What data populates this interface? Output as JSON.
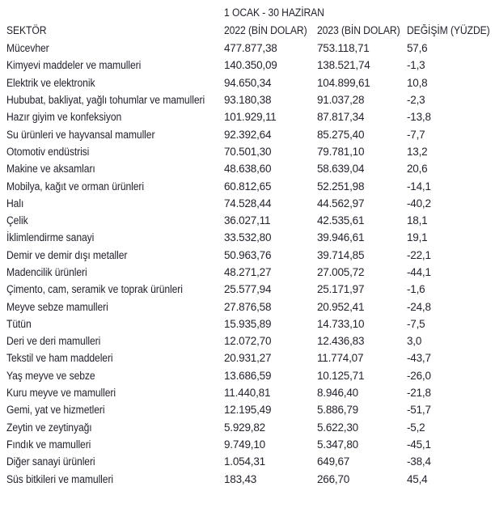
{
  "colors": {
    "background": "#ffffff",
    "text": "#23232e"
  },
  "chart_data": {
    "type": "table",
    "title": "1 OCAK - 30 HAZİRAN",
    "columns": [
      "SEKTÖR",
      "2022 (BİN DOLAR)",
      "2023 (BİN DOLAR)",
      "DEĞİŞİM (YÜZDE)"
    ],
    "rows": [
      [
        "Mücevher",
        "477.877,38",
        "753.118,71",
        "57,6"
      ],
      [
        "Kimyevi maddeler ve mamulleri",
        "140.350,09",
        "138.521,74",
        "-1,3"
      ],
      [
        "Elektrik ve elektronik",
        "94.650,34",
        "104.899,61",
        "10,8"
      ],
      [
        "Hububat, bakliyat, yağlı tohumlar ve mamulleri",
        "93.180,38",
        "91.037,28",
        "-2,3"
      ],
      [
        "Hazır giyim ve konfeksiyon",
        "101.929,11",
        "87.817,34",
        "-13,8"
      ],
      [
        "Su ürünleri ve hayvansal mamuller",
        "92.392,64",
        "85.275,40",
        "-7,7"
      ],
      [
        "Otomotiv endüstrisi",
        "70.501,30",
        "79.781,10",
        "13,2"
      ],
      [
        "Makine ve aksamları",
        "48.638,60",
        "58.639,04",
        "20,6"
      ],
      [
        "Mobilya, kağıt ve orman ürünleri",
        "60.812,65",
        "52.251,98",
        "-14,1"
      ],
      [
        "Halı",
        "74.528,44",
        "44.562,97",
        "-40,2"
      ],
      [
        "Çelik",
        "36.027,11",
        "42.535,61",
        "18,1"
      ],
      [
        "İklimlendirme sanayi",
        "33.532,80",
        "39.946,61",
        "19,1"
      ],
      [
        "Demir ve demir dışı metaller",
        "50.963,76",
        "39.714,85",
        "-22,1"
      ],
      [
        "Madencilik ürünleri",
        "48.271,27",
        "27.005,72",
        "-44,1"
      ],
      [
        "Çimento, cam, seramik ve toprak ürünleri",
        "25.577,94",
        "25.171,97",
        "-1,6"
      ],
      [
        "Meyve sebze mamulleri",
        "27.876,58",
        "20.952,41",
        "-24,8"
      ],
      [
        "Tütün",
        "15.935,89",
        "14.733,10",
        "-7,5"
      ],
      [
        "Deri ve deri mamulleri",
        "12.072,70",
        "12.436,83",
        "3,0"
      ],
      [
        "Tekstil ve ham maddeleri",
        "20.931,27",
        "11.774,07",
        "-43,7"
      ],
      [
        "Yaş meyve ve sebze",
        "13.686,59",
        "10.125,71",
        "-26,0"
      ],
      [
        "Kuru meyve ve mamulleri",
        "11.440,81",
        "8.946,40",
        "-21,8"
      ],
      [
        "Gemi, yat ve hizmetleri",
        "12.195,49",
        "5.886,79",
        "-51,7"
      ],
      [
        "Zeytin ve zeytinyağı",
        "5.929,82",
        "5.622,30",
        "-5,2"
      ],
      [
        "Fındık ve mamulleri",
        "9.749,10",
        "5.347,80",
        "-45,1"
      ],
      [
        "Diğer sanayi ürünleri",
        "1.054,31",
        "649,67",
        "-38,4"
      ],
      [
        "Süs bitkileri ve mamulleri",
        "183,43",
        "266,70",
        "45,4"
      ]
    ]
  }
}
